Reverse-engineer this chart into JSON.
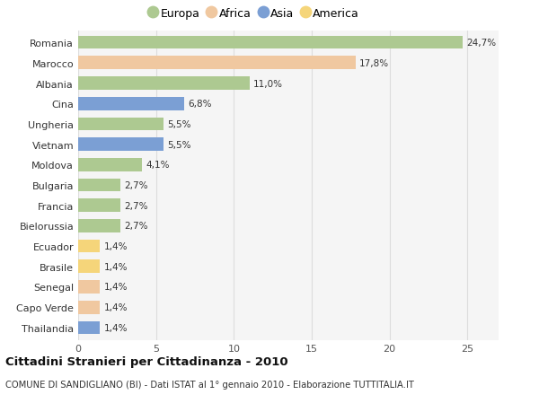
{
  "countries": [
    "Romania",
    "Marocco",
    "Albania",
    "Cina",
    "Ungheria",
    "Vietnam",
    "Moldova",
    "Bulgaria",
    "Francia",
    "Bielorussia",
    "Ecuador",
    "Brasile",
    "Senegal",
    "Capo Verde",
    "Thailandia"
  ],
  "values": [
    24.7,
    17.8,
    11.0,
    6.8,
    5.5,
    5.5,
    4.1,
    2.7,
    2.7,
    2.7,
    1.4,
    1.4,
    1.4,
    1.4,
    1.4
  ],
  "labels": [
    "24,7%",
    "17,8%",
    "11,0%",
    "6,8%",
    "5,5%",
    "5,5%",
    "4,1%",
    "2,7%",
    "2,7%",
    "2,7%",
    "1,4%",
    "1,4%",
    "1,4%",
    "1,4%",
    "1,4%"
  ],
  "continents": [
    "Europa",
    "Africa",
    "Europa",
    "Asia",
    "Europa",
    "Asia",
    "Europa",
    "Europa",
    "Europa",
    "Europa",
    "America",
    "America",
    "Africa",
    "Africa",
    "Asia"
  ],
  "continent_colors": {
    "Europa": "#adc991",
    "Africa": "#f0c8a0",
    "Asia": "#7b9fd4",
    "America": "#f5d57a"
  },
  "title": "Cittadini Stranieri per Cittadinanza - 2010",
  "subtitle": "COMUNE DI SANDIGLIANO (BI) - Dati ISTAT al 1° gennaio 2010 - Elaborazione TUTTITALIA.IT",
  "xlim": [
    0,
    27
  ],
  "background_color": "#ffffff",
  "plot_bg_color": "#f5f5f5",
  "grid_color": "#dddddd",
  "bar_height": 0.65,
  "legend_entries": [
    "Europa",
    "Africa",
    "Asia",
    "America"
  ]
}
